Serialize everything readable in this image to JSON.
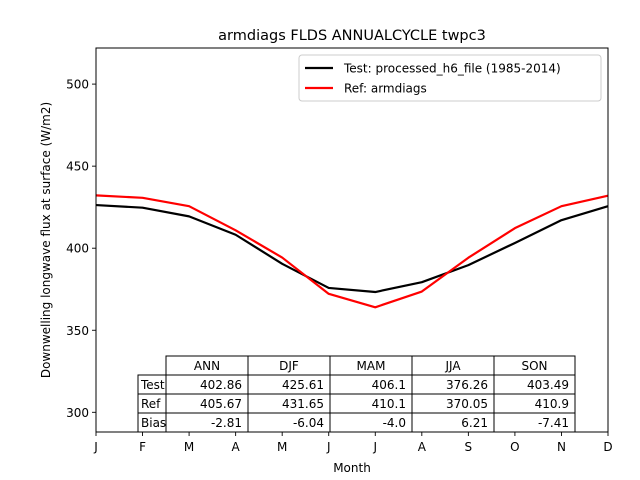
{
  "chart_data": {
    "type": "line",
    "title": "armdiags FLDS ANNUALCYCLE twpc3",
    "xlabel": "Month",
    "ylabel": "Downwelling longwave flux at surface (W/m2)",
    "x_ticks": [
      "J",
      "F",
      "M",
      "A",
      "M",
      "J",
      "J",
      "A",
      "S",
      "O",
      "N",
      "D"
    ],
    "xlim": [
      0,
      11
    ],
    "ylim": [
      288,
      522
    ],
    "y_ticks": [
      300,
      350,
      400,
      450,
      500
    ],
    "grid": false,
    "legend_position": "upper-right",
    "series": [
      {
        "name": "Test: processed_h6_file (1985-2014)",
        "color": "#000000",
        "values": [
          426.3,
          424.7,
          419.4,
          408.2,
          390.5,
          375.8,
          373.3,
          379.3,
          389.7,
          403.2,
          417.1,
          425.6
        ]
      },
      {
        "name": "Ref: armdiags",
        "color": "#ff0000",
        "values": [
          432.2,
          430.7,
          425.6,
          410.9,
          394.3,
          372.2,
          364.0,
          373.6,
          394.2,
          412.2,
          425.6,
          432.0
        ]
      }
    ],
    "table": {
      "columns": [
        "ANN",
        "DJF",
        "MAM",
        "JJA",
        "SON"
      ],
      "rows": [
        {
          "label": "Test",
          "values": [
            "402.86",
            "425.61",
            "406.1",
            "376.26",
            "403.49"
          ]
        },
        {
          "label": "Ref",
          "values": [
            "405.67",
            "431.65",
            "410.1",
            "370.05",
            "410.9"
          ]
        },
        {
          "label": "Bias",
          "values": [
            "-2.81",
            "-6.04",
            "-4.0",
            "6.21",
            "-7.41"
          ]
        }
      ]
    }
  }
}
